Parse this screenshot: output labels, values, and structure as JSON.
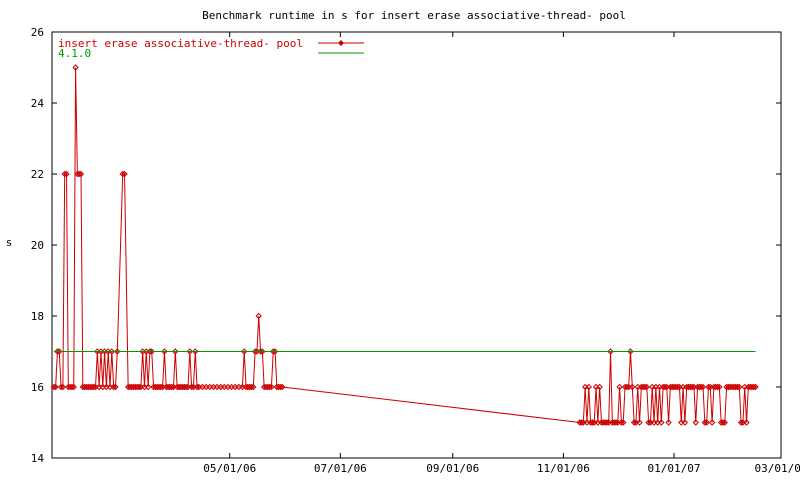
{
  "chart_data": {
    "type": "line",
    "title": "Benchmark runtime in s for insert erase associative-thread-  pool",
    "xlabel": "",
    "ylabel": "s",
    "ylim": [
      14,
      26
    ],
    "xlim": [
      "2006-01-23",
      "2007-03-01"
    ],
    "grid": false,
    "legend_placement": "top-left",
    "x_ticks": [
      {
        "date": "2006-05-01",
        "label": "05/01/06"
      },
      {
        "date": "2006-07-01",
        "label": "07/01/06"
      },
      {
        "date": "2006-09-01",
        "label": "09/01/06"
      },
      {
        "date": "2006-11-01",
        "label": "11/01/06"
      },
      {
        "date": "2007-01-01",
        "label": "01/01/07"
      },
      {
        "date": "2007-03-01",
        "label": "03/01/07"
      }
    ],
    "y_ticks": [
      14,
      16,
      18,
      20,
      22,
      24,
      26
    ],
    "series": [
      {
        "name": "insert erase associative-thread-  pool",
        "color": "#cc0000",
        "marker": "diamond",
        "points": [
          [
            "2006-01-24",
            16
          ],
          [
            "2006-01-25",
            16
          ],
          [
            "2006-01-26",
            17
          ],
          [
            "2006-01-27",
            17
          ],
          [
            "2006-01-28",
            16
          ],
          [
            "2006-01-29",
            16
          ],
          [
            "2006-01-30",
            22
          ],
          [
            "2006-01-31",
            22
          ],
          [
            "2006-02-01",
            16
          ],
          [
            "2006-02-02",
            16
          ],
          [
            "2006-02-03",
            16
          ],
          [
            "2006-02-04",
            16
          ],
          [
            "2006-02-05",
            25
          ],
          [
            "2006-02-06",
            22
          ],
          [
            "2006-02-07",
            22
          ],
          [
            "2006-02-08",
            22
          ],
          [
            "2006-02-09",
            16
          ],
          [
            "2006-02-10",
            16
          ],
          [
            "2006-02-11",
            16
          ],
          [
            "2006-02-12",
            16
          ],
          [
            "2006-02-13",
            16
          ],
          [
            "2006-02-14",
            16
          ],
          [
            "2006-02-15",
            16
          ],
          [
            "2006-02-16",
            16
          ],
          [
            "2006-02-17",
            17
          ],
          [
            "2006-02-18",
            16
          ],
          [
            "2006-02-19",
            17
          ],
          [
            "2006-02-20",
            16
          ],
          [
            "2006-02-21",
            17
          ],
          [
            "2006-02-22",
            16
          ],
          [
            "2006-02-23",
            17
          ],
          [
            "2006-02-24",
            16
          ],
          [
            "2006-02-25",
            17
          ],
          [
            "2006-02-26",
            16
          ],
          [
            "2006-02-27",
            16
          ],
          [
            "2006-02-28",
            17
          ],
          [
            "2006-03-03",
            22
          ],
          [
            "2006-03-04",
            22
          ],
          [
            "2006-03-06",
            16
          ],
          [
            "2006-03-07",
            16
          ],
          [
            "2006-03-08",
            16
          ],
          [
            "2006-03-09",
            16
          ],
          [
            "2006-03-10",
            16
          ],
          [
            "2006-03-11",
            16
          ],
          [
            "2006-03-12",
            16
          ],
          [
            "2006-03-13",
            16
          ],
          [
            "2006-03-14",
            17
          ],
          [
            "2006-03-15",
            16
          ],
          [
            "2006-03-16",
            17
          ],
          [
            "2006-03-17",
            16
          ],
          [
            "2006-03-18",
            17
          ],
          [
            "2006-03-19",
            17
          ],
          [
            "2006-03-20",
            16
          ],
          [
            "2006-03-21",
            16
          ],
          [
            "2006-03-22",
            16
          ],
          [
            "2006-03-23",
            16
          ],
          [
            "2006-03-24",
            16
          ],
          [
            "2006-03-25",
            16
          ],
          [
            "2006-03-26",
            17
          ],
          [
            "2006-03-27",
            16
          ],
          [
            "2006-03-28",
            16
          ],
          [
            "2006-03-29",
            16
          ],
          [
            "2006-03-30",
            16
          ],
          [
            "2006-03-31",
            16
          ],
          [
            "2006-04-01",
            17
          ],
          [
            "2006-04-02",
            16
          ],
          [
            "2006-04-03",
            16
          ],
          [
            "2006-04-04",
            16
          ],
          [
            "2006-04-05",
            16
          ],
          [
            "2006-04-06",
            16
          ],
          [
            "2006-04-07",
            16
          ],
          [
            "2006-04-08",
            16
          ],
          [
            "2006-04-09",
            17
          ],
          [
            "2006-04-10",
            16
          ],
          [
            "2006-04-11",
            16
          ],
          [
            "2006-04-12",
            17
          ],
          [
            "2006-04-13",
            16
          ],
          [
            "2006-04-14",
            16
          ],
          [
            "2006-04-16",
            16
          ],
          [
            "2006-04-18",
            16
          ],
          [
            "2006-04-20",
            16
          ],
          [
            "2006-04-22",
            16
          ],
          [
            "2006-04-24",
            16
          ],
          [
            "2006-04-26",
            16
          ],
          [
            "2006-04-28",
            16
          ],
          [
            "2006-04-30",
            16
          ],
          [
            "2006-05-02",
            16
          ],
          [
            "2006-05-04",
            16
          ],
          [
            "2006-05-06",
            16
          ],
          [
            "2006-05-08",
            16
          ],
          [
            "2006-05-09",
            17
          ],
          [
            "2006-05-10",
            16
          ],
          [
            "2006-05-11",
            16
          ],
          [
            "2006-05-12",
            16
          ],
          [
            "2006-05-13",
            16
          ],
          [
            "2006-05-14",
            16
          ],
          [
            "2006-05-15",
            17
          ],
          [
            "2006-05-16",
            17
          ],
          [
            "2006-05-17",
            18
          ],
          [
            "2006-05-18",
            17
          ],
          [
            "2006-05-19",
            17
          ],
          [
            "2006-05-20",
            16
          ],
          [
            "2006-05-21",
            16
          ],
          [
            "2006-05-22",
            16
          ],
          [
            "2006-05-23",
            16
          ],
          [
            "2006-05-24",
            16
          ],
          [
            "2006-05-25",
            17
          ],
          [
            "2006-05-26",
            17
          ],
          [
            "2006-05-27",
            16
          ],
          [
            "2006-05-28",
            16
          ],
          [
            "2006-05-29",
            16
          ],
          [
            "2006-05-30",
            16
          ],
          [
            "2006-11-10",
            15
          ],
          [
            "2006-11-11",
            15
          ],
          [
            "2006-11-12",
            15
          ],
          [
            "2006-11-13",
            16
          ],
          [
            "2006-11-14",
            15
          ],
          [
            "2006-11-15",
            16
          ],
          [
            "2006-11-16",
            15
          ],
          [
            "2006-11-17",
            15
          ],
          [
            "2006-11-18",
            15
          ],
          [
            "2006-11-19",
            16
          ],
          [
            "2006-11-20",
            15
          ],
          [
            "2006-11-21",
            16
          ],
          [
            "2006-11-22",
            15
          ],
          [
            "2006-11-23",
            15
          ],
          [
            "2006-11-24",
            15
          ],
          [
            "2006-11-25",
            15
          ],
          [
            "2006-11-26",
            15
          ],
          [
            "2006-11-27",
            17
          ],
          [
            "2006-11-28",
            15
          ],
          [
            "2006-11-29",
            15
          ],
          [
            "2006-11-30",
            15
          ],
          [
            "2006-12-01",
            15
          ],
          [
            "2006-12-02",
            16
          ],
          [
            "2006-12-03",
            15
          ],
          [
            "2006-12-04",
            15
          ],
          [
            "2006-12-05",
            16
          ],
          [
            "2006-12-06",
            16
          ],
          [
            "2006-12-07",
            16
          ],
          [
            "2006-12-08",
            17
          ],
          [
            "2006-12-09",
            16
          ],
          [
            "2006-12-10",
            15
          ],
          [
            "2006-12-11",
            15
          ],
          [
            "2006-12-12",
            16
          ],
          [
            "2006-12-13",
            15
          ],
          [
            "2006-12-14",
            16
          ],
          [
            "2006-12-15",
            16
          ],
          [
            "2006-12-16",
            16
          ],
          [
            "2006-12-17",
            16
          ],
          [
            "2006-12-18",
            15
          ],
          [
            "2006-12-19",
            15
          ],
          [
            "2006-12-20",
            16
          ],
          [
            "2006-12-21",
            15
          ],
          [
            "2006-12-22",
            16
          ],
          [
            "2006-12-23",
            15
          ],
          [
            "2006-12-24",
            16
          ],
          [
            "2006-12-25",
            15
          ],
          [
            "2006-12-26",
            16
          ],
          [
            "2006-12-27",
            16
          ],
          [
            "2006-12-28",
            16
          ],
          [
            "2006-12-29",
            15
          ],
          [
            "2006-12-30",
            16
          ],
          [
            "2006-12-31",
            16
          ],
          [
            "2007-01-01",
            16
          ],
          [
            "2007-01-02",
            16
          ],
          [
            "2007-01-03",
            16
          ],
          [
            "2007-01-04",
            16
          ],
          [
            "2007-01-05",
            15
          ],
          [
            "2007-01-06",
            16
          ],
          [
            "2007-01-07",
            15
          ],
          [
            "2007-01-08",
            16
          ],
          [
            "2007-01-09",
            16
          ],
          [
            "2007-01-10",
            16
          ],
          [
            "2007-01-11",
            16
          ],
          [
            "2007-01-12",
            16
          ],
          [
            "2007-01-13",
            15
          ],
          [
            "2007-01-14",
            16
          ],
          [
            "2007-01-15",
            16
          ],
          [
            "2007-01-16",
            16
          ],
          [
            "2007-01-17",
            16
          ],
          [
            "2007-01-18",
            15
          ],
          [
            "2007-01-19",
            15
          ],
          [
            "2007-01-20",
            16
          ],
          [
            "2007-01-21",
            16
          ],
          [
            "2007-01-22",
            15
          ],
          [
            "2007-01-23",
            16
          ],
          [
            "2007-01-24",
            16
          ],
          [
            "2007-01-25",
            16
          ],
          [
            "2007-01-26",
            16
          ],
          [
            "2007-01-27",
            15
          ],
          [
            "2007-01-28",
            15
          ],
          [
            "2007-01-29",
            15
          ],
          [
            "2007-01-30",
            16
          ],
          [
            "2007-01-31",
            16
          ],
          [
            "2007-02-01",
            16
          ],
          [
            "2007-02-02",
            16
          ],
          [
            "2007-02-03",
            16
          ],
          [
            "2007-02-04",
            16
          ],
          [
            "2007-02-05",
            16
          ],
          [
            "2007-02-06",
            16
          ],
          [
            "2007-02-07",
            15
          ],
          [
            "2007-02-08",
            15
          ],
          [
            "2007-02-09",
            16
          ],
          [
            "2007-02-10",
            15
          ],
          [
            "2007-02-11",
            16
          ],
          [
            "2007-02-12",
            16
          ],
          [
            "2007-02-13",
            16
          ],
          [
            "2007-02-14",
            16
          ],
          [
            "2007-02-15",
            16
          ]
        ]
      },
      {
        "name": "4.1.0",
        "color": "#009900",
        "marker": "none",
        "points": [
          [
            "2006-01-24",
            17
          ],
          [
            "2007-02-15",
            17
          ]
        ]
      }
    ]
  }
}
